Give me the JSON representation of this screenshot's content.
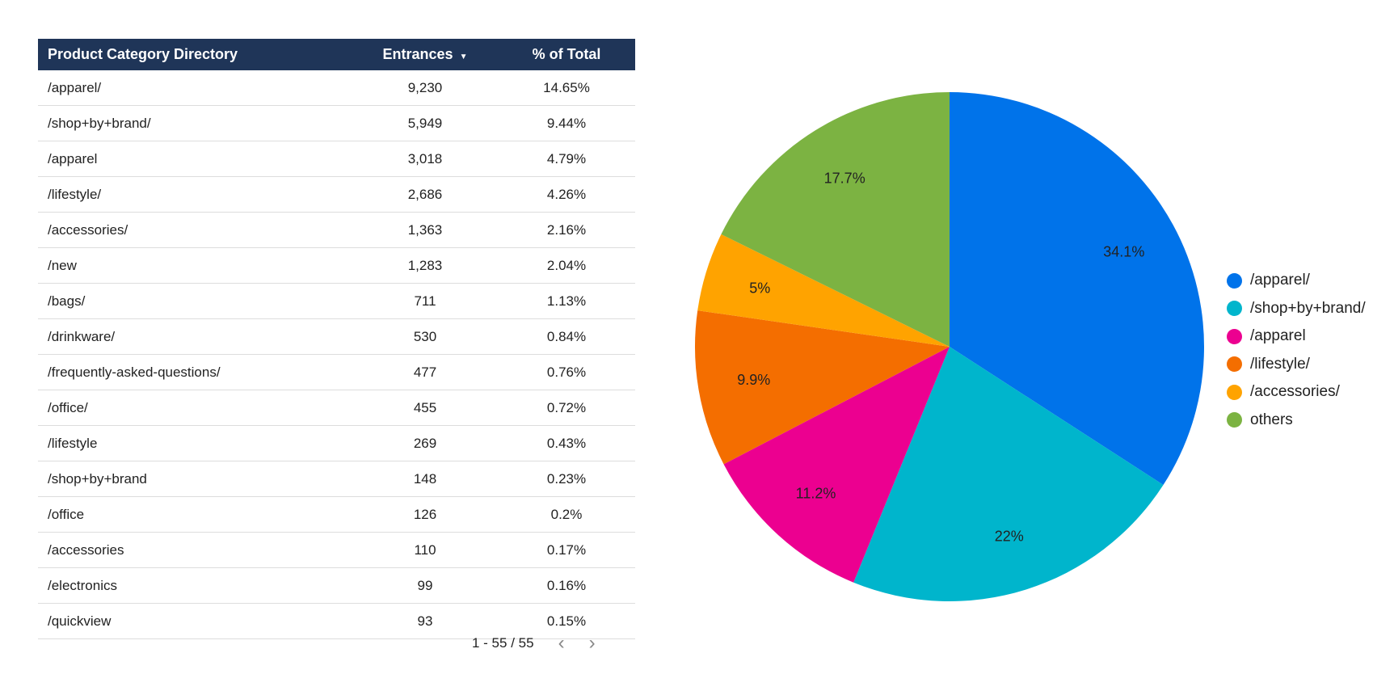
{
  "table": {
    "headers": [
      "Product Category Directory",
      "Entrances",
      "% of Total"
    ],
    "sort_icon": "sort-descending-icon",
    "rows": [
      [
        "/apparel/",
        "9,230",
        "14.65%"
      ],
      [
        "/shop+by+brand/",
        "5,949",
        "9.44%"
      ],
      [
        "/apparel",
        "3,018",
        "4.79%"
      ],
      [
        "/lifestyle/",
        "2,686",
        "4.26%"
      ],
      [
        "/accessories/",
        "1,363",
        "2.16%"
      ],
      [
        "/new",
        "1,283",
        "2.04%"
      ],
      [
        "/bags/",
        "711",
        "1.13%"
      ],
      [
        "/drinkware/",
        "530",
        "0.84%"
      ],
      [
        "/frequently-asked-questions/",
        "477",
        "0.76%"
      ],
      [
        "/office/",
        "455",
        "0.72%"
      ],
      [
        "/lifestyle",
        "269",
        "0.43%"
      ],
      [
        "/shop+by+brand",
        "148",
        "0.23%"
      ],
      [
        "/office",
        "126",
        "0.2%"
      ],
      [
        "/accessories",
        "110",
        "0.17%"
      ],
      [
        "/electronics",
        "99",
        "0.16%"
      ],
      [
        "/quickview",
        "93",
        "0.15%"
      ]
    ],
    "pagination": "1 - 55 / 55",
    "prev": "‹",
    "next": "›"
  },
  "chart_data": {
    "type": "pie",
    "categories": [
      "/apparel/",
      "/shop+by+brand/",
      "/apparel",
      "/lifestyle/",
      "/accessories/",
      "others"
    ],
    "values": [
      34.1,
      22,
      11.2,
      9.9,
      5,
      17.7
    ],
    "labels": [
      "34.1%",
      "22%",
      "11.2%",
      "9.9%",
      "5%",
      "17.7%"
    ],
    "colors": [
      "#0073ea",
      "#00b5cc",
      "#ec0090",
      "#f46e00",
      "#ffa300",
      "#7cb342"
    ],
    "legend_position": "right"
  }
}
